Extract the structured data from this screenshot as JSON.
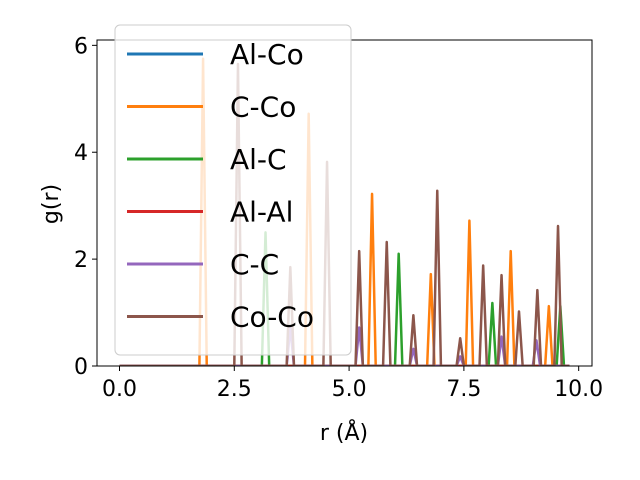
{
  "chart_data": {
    "type": "line",
    "xlabel": "r (Å)",
    "ylabel": "g(r)",
    "xlim": [
      -0.49,
      10.29
    ],
    "ylim": [
      0,
      6.1
    ],
    "xticks": [
      0.0,
      2.5,
      5.0,
      7.5,
      10.0
    ],
    "xtick_labels": [
      "0.0",
      "2.5",
      "5.0",
      "7.5",
      "10.0"
    ],
    "yticks": [
      0,
      2,
      4,
      6
    ],
    "ytick_labels": [
      "0",
      "2",
      "4",
      "6"
    ],
    "grid": false,
    "legend_position": "upper-left",
    "series": [
      {
        "name": "Al-Co",
        "color": "#1f77b4",
        "peaks": []
      },
      {
        "name": "C-Co",
        "color": "#ff7f0e",
        "peaks": [
          [
            1.82,
            5.75
          ],
          [
            4.12,
            4.72
          ],
          [
            5.5,
            3.22
          ],
          [
            6.78,
            1.72
          ],
          [
            7.62,
            2.72
          ],
          [
            8.52,
            2.15
          ],
          [
            9.35,
            1.12
          ]
        ]
      },
      {
        "name": "Al-C",
        "color": "#2ca02c",
        "peaks": [
          [
            3.18,
            2.5
          ],
          [
            6.08,
            2.1
          ],
          [
            8.12,
            1.18
          ],
          [
            9.6,
            1.12
          ]
        ]
      },
      {
        "name": "Al-Al",
        "color": "#d62728",
        "peaks": []
      },
      {
        "name": "C-C",
        "color": "#9467bd",
        "peaks": [
          [
            3.72,
            0.72
          ],
          [
            5.22,
            0.72
          ],
          [
            6.4,
            0.32
          ],
          [
            7.42,
            0.18
          ],
          [
            8.32,
            0.55
          ],
          [
            9.08,
            0.48
          ]
        ]
      },
      {
        "name": "Co-Co",
        "color": "#8c564b",
        "peaks": [
          [
            2.58,
            5.65
          ],
          [
            3.72,
            1.85
          ],
          [
            4.52,
            3.82
          ],
          [
            5.22,
            2.15
          ],
          [
            5.82,
            2.32
          ],
          [
            6.4,
            0.95
          ],
          [
            6.92,
            3.28
          ],
          [
            7.42,
            0.52
          ],
          [
            7.92,
            1.88
          ],
          [
            8.32,
            1.7
          ],
          [
            8.7,
            1.02
          ],
          [
            9.1,
            1.42
          ],
          [
            9.55,
            2.62
          ]
        ]
      }
    ]
  }
}
